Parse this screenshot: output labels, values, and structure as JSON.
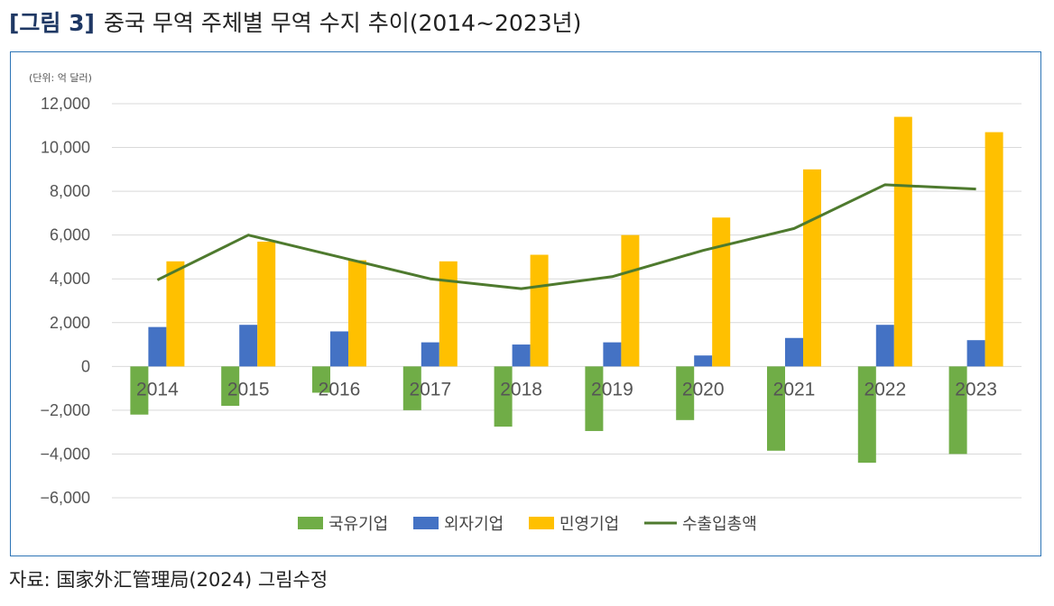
{
  "figure": {
    "tag": "[그림 3]",
    "title": "중국 무역 주체별 무역 수지 추이(2014~2023년)"
  },
  "source": "자료: 国家外汇管理局(2024) 그림수정",
  "colors": {
    "soe": "#70ad47",
    "foreign": "#4472c4",
    "private": "#ffc000",
    "total": "#4e7a2e",
    "frame": "#2e75b6",
    "grid": "#d9d9d9"
  },
  "chart_data": {
    "type": "bar",
    "title": "",
    "unit_note": "(단위: 억 달러)",
    "categories": [
      "2014",
      "2015",
      "2016",
      "2017",
      "2018",
      "2019",
      "2020",
      "2021",
      "2022",
      "2023"
    ],
    "ylim": [
      -6000,
      12000
    ],
    "yticks": [
      12000,
      10000,
      8000,
      6000,
      4000,
      2000,
      0,
      -2000,
      -4000,
      -6000
    ],
    "ytick_labels": [
      "12,000",
      "10,000",
      "8,000",
      "6,000",
      "4,000",
      "2,000",
      "0",
      "−2,000",
      "−4,000",
      "−6,000"
    ],
    "grid": true,
    "legend_position": "bottom",
    "series": [
      {
        "name": "국유기업",
        "type": "bar",
        "color_key": "soe",
        "values": [
          -2200,
          -1800,
          -1200,
          -2000,
          -2750,
          -2950,
          -2450,
          -3850,
          -4400,
          -4000
        ]
      },
      {
        "name": "외자기업",
        "type": "bar",
        "color_key": "foreign",
        "values": [
          1800,
          1900,
          1600,
          1100,
          1000,
          1100,
          500,
          1300,
          1900,
          1200
        ]
      },
      {
        "name": "민영기업",
        "type": "bar",
        "color_key": "private",
        "values": [
          4800,
          5700,
          4850,
          4800,
          5100,
          6000,
          6800,
          9000,
          11400,
          10700
        ]
      },
      {
        "name": "수출입총액",
        "type": "line",
        "color_key": "total",
        "values": [
          3950,
          6000,
          5000,
          4000,
          3550,
          4100,
          5300,
          6300,
          8300,
          8100
        ]
      }
    ]
  }
}
